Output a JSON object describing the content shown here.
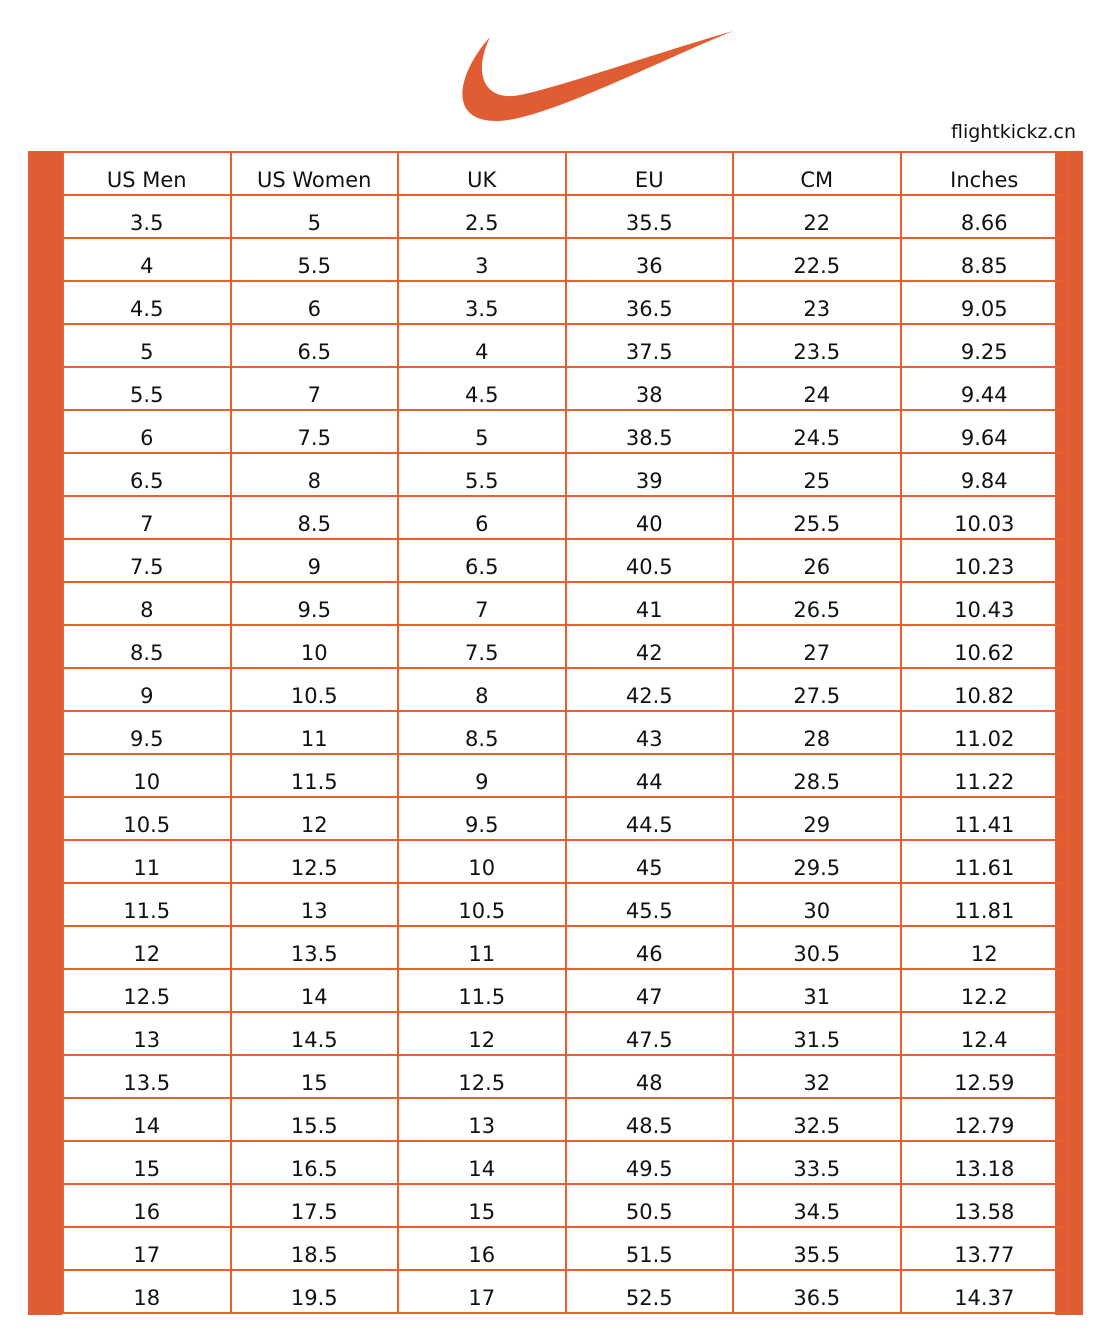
{
  "brand": {
    "logo": "Nike swoosh",
    "color": "#E05D33",
    "website": "flightkickz.cn"
  },
  "table": {
    "headers": [
      "US Men",
      "US Women",
      "UK",
      "EU",
      "CM",
      "Inches"
    ],
    "rows": [
      [
        "3.5",
        "5",
        "2.5",
        "35.5",
        "22",
        "8.66"
      ],
      [
        "4",
        "5.5",
        "3",
        "36",
        "22.5",
        "8.85"
      ],
      [
        "4.5",
        "6",
        "3.5",
        "36.5",
        "23",
        "9.05"
      ],
      [
        "5",
        "6.5",
        "4",
        "37.5",
        "23.5",
        "9.25"
      ],
      [
        "5.5",
        "7",
        "4.5",
        "38",
        "24",
        "9.44"
      ],
      [
        "6",
        "7.5",
        "5",
        "38.5",
        "24.5",
        "9.64"
      ],
      [
        "6.5",
        "8",
        "5.5",
        "39",
        "25",
        "9.84"
      ],
      [
        "7",
        "8.5",
        "6",
        "40",
        "25.5",
        "10.03"
      ],
      [
        "7.5",
        "9",
        "6.5",
        "40.5",
        "26",
        "10.23"
      ],
      [
        "8",
        "9.5",
        "7",
        "41",
        "26.5",
        "10.43"
      ],
      [
        "8.5",
        "10",
        "7.5",
        "42",
        "27",
        "10.62"
      ],
      [
        "9",
        "10.5",
        "8",
        "42.5",
        "27.5",
        "10.82"
      ],
      [
        "9.5",
        "11",
        "8.5",
        "43",
        "28",
        "11.02"
      ],
      [
        "10",
        "11.5",
        "9",
        "44",
        "28.5",
        "11.22"
      ],
      [
        "10.5",
        "12",
        "9.5",
        "44.5",
        "29",
        "11.41"
      ],
      [
        "11",
        "12.5",
        "10",
        "45",
        "29.5",
        "11.61"
      ],
      [
        "11.5",
        "13",
        "10.5",
        "45.5",
        "30",
        "11.81"
      ],
      [
        "12",
        "13.5",
        "11",
        "46",
        "30.5",
        "12"
      ],
      [
        "12.5",
        "14",
        "11.5",
        "47",
        "31",
        "12.2"
      ],
      [
        "13",
        "14.5",
        "12",
        "47.5",
        "31.5",
        "12.4"
      ],
      [
        "13.5",
        "15",
        "12.5",
        "48",
        "32",
        "12.59"
      ],
      [
        "14",
        "15.5",
        "13",
        "48.5",
        "32.5",
        "12.79"
      ],
      [
        "15",
        "16.5",
        "14",
        "49.5",
        "33.5",
        "13.18"
      ],
      [
        "16",
        "17.5",
        "15",
        "50.5",
        "34.5",
        "13.58"
      ],
      [
        "17",
        "18.5",
        "16",
        "51.5",
        "35.5",
        "13.77"
      ],
      [
        "18",
        "19.5",
        "17",
        "52.5",
        "36.5",
        "14.37"
      ]
    ]
  }
}
